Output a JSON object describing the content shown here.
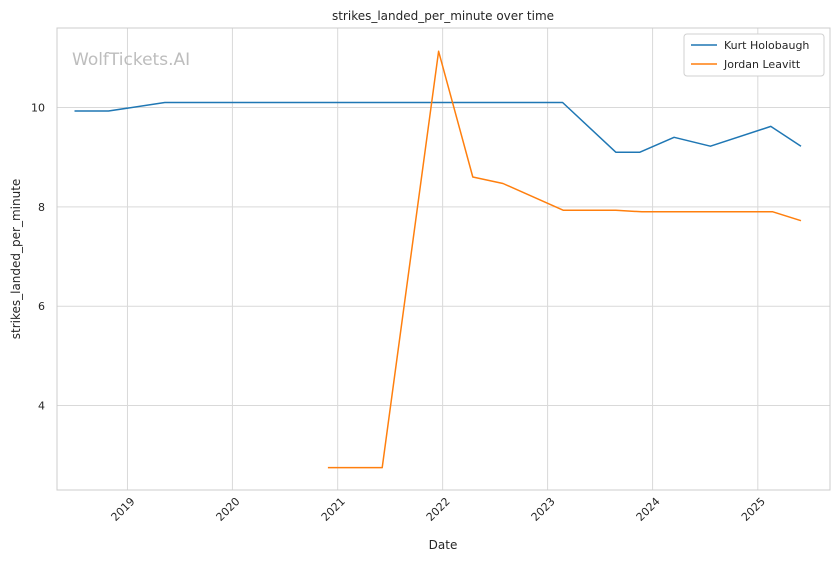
{
  "chart_data": {
    "type": "line",
    "title": "strikes_landed_per_minute over time",
    "xlabel": "Date",
    "ylabel": "strikes_landed_per_minute",
    "watermark": "WolfTickets.AI",
    "xlim": [
      "2018-05-01",
      "2025-09-09"
    ],
    "ylim": [
      2.3,
      11.6
    ],
    "x_ticks": [
      "2019-01-01",
      "2020-01-01",
      "2021-01-01",
      "2022-01-01",
      "2023-01-01",
      "2024-01-01",
      "2025-01-01"
    ],
    "x_tick_labels": [
      "2019",
      "2020",
      "2021",
      "2022",
      "2023",
      "2024",
      "2025"
    ],
    "y_ticks": [
      4,
      6,
      8,
      10
    ],
    "y_tick_labels": [
      "4",
      "6",
      "8",
      "10"
    ],
    "grid": true,
    "legend_position": "top-right",
    "series": [
      {
        "name": "Kurt Holobaugh",
        "color": "#1f77b4",
        "points": [
          {
            "x": "2018-07-01",
            "y": 9.93
          },
          {
            "x": "2018-10-27",
            "y": 9.93
          },
          {
            "x": "2019-05-11",
            "y": 10.1
          },
          {
            "x": "2023-02-22",
            "y": 10.1
          },
          {
            "x": "2023-08-26",
            "y": 9.1
          },
          {
            "x": "2023-11-18",
            "y": 9.1
          },
          {
            "x": "2024-03-16",
            "y": 9.4
          },
          {
            "x": "2024-07-20",
            "y": 9.22
          },
          {
            "x": "2025-02-15",
            "y": 9.62
          },
          {
            "x": "2025-05-31",
            "y": 9.22
          }
        ]
      },
      {
        "name": "Jordan Leavitt",
        "color": "#ff7f0e",
        "points": [
          {
            "x": "2020-11-28",
            "y": 2.75
          },
          {
            "x": "2021-06-05",
            "y": 2.75
          },
          {
            "x": "2021-12-18",
            "y": 11.13
          },
          {
            "x": "2022-04-16",
            "y": 8.6
          },
          {
            "x": "2022-07-30",
            "y": 8.47
          },
          {
            "x": "2023-02-25",
            "y": 7.93
          },
          {
            "x": "2023-08-26",
            "y": 7.93
          },
          {
            "x": "2023-11-25",
            "y": 7.9
          },
          {
            "x": "2025-02-22",
            "y": 7.9
          },
          {
            "x": "2025-05-31",
            "y": 7.72
          }
        ]
      }
    ]
  }
}
